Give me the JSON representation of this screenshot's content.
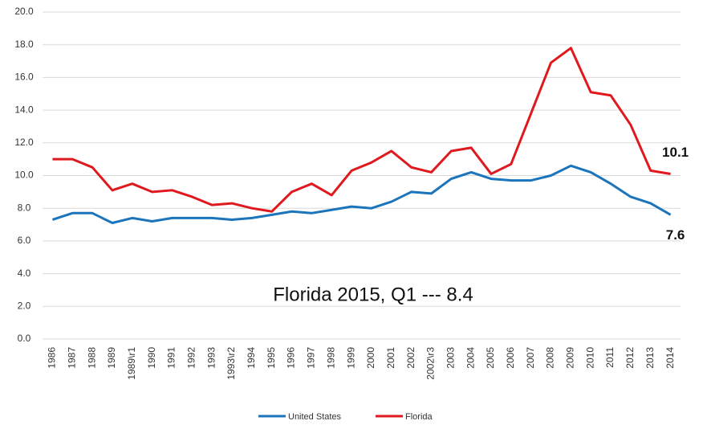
{
  "chart_data": {
    "type": "line",
    "categories": [
      "1986",
      "1987",
      "1988",
      "1989",
      "1989\\r1",
      "1990",
      "1991",
      "1992",
      "1993",
      "1993\\r2",
      "1994",
      "1995",
      "1996",
      "1997",
      "1998",
      "1999",
      "2000",
      "2001",
      "2002",
      "2002\\r3",
      "2003",
      "2004",
      "2005",
      "2006",
      "2007",
      "2008",
      "2009",
      "2010",
      "2011",
      "2012",
      "2013",
      "2014"
    ],
    "series": [
      {
        "name": "United States",
        "color": "#1b75bc",
        "values": [
          7.3,
          7.7,
          7.7,
          7.1,
          7.4,
          7.2,
          7.4,
          7.4,
          7.4,
          7.3,
          7.4,
          7.6,
          7.8,
          7.7,
          7.9,
          8.1,
          8.0,
          8.4,
          9.0,
          8.9,
          9.8,
          10.2,
          9.8,
          9.7,
          9.7,
          10.0,
          10.6,
          10.2,
          9.5,
          8.7,
          8.3,
          7.6
        ]
      },
      {
        "name": "Florida",
        "color": "#e0191e",
        "values": [
          11.0,
          11.0,
          10.5,
          9.1,
          9.5,
          9.0,
          9.1,
          8.7,
          8.2,
          8.3,
          8.0,
          7.8,
          9.0,
          9.5,
          8.8,
          10.3,
          10.8,
          11.5,
          10.5,
          10.2,
          11.5,
          11.7,
          10.1,
          10.7,
          13.8,
          16.9,
          17.8,
          15.1,
          14.9,
          13.1,
          10.3,
          10.1
        ]
      }
    ],
    "ylim": [
      0,
      20
    ],
    "yticks": [
      {
        "value": 0,
        "label": "0.0"
      },
      {
        "value": 2,
        "label": "2.0"
      },
      {
        "value": 4,
        "label": "4.0"
      },
      {
        "value": 6,
        "label": "6.0"
      },
      {
        "value": 8,
        "label": "8.0"
      },
      {
        "value": 10,
        "label": "10.0"
      },
      {
        "value": 12,
        "label": "12.0"
      },
      {
        "value": 14,
        "label": "14.0"
      },
      {
        "value": 16,
        "label": "16.0"
      },
      {
        "value": 18,
        "label": "18.0"
      },
      {
        "value": 20,
        "label": "20.0"
      }
    ],
    "annotation": "Florida 2015, Q1 --- 8.4",
    "grid": true,
    "legend": "bottom"
  }
}
